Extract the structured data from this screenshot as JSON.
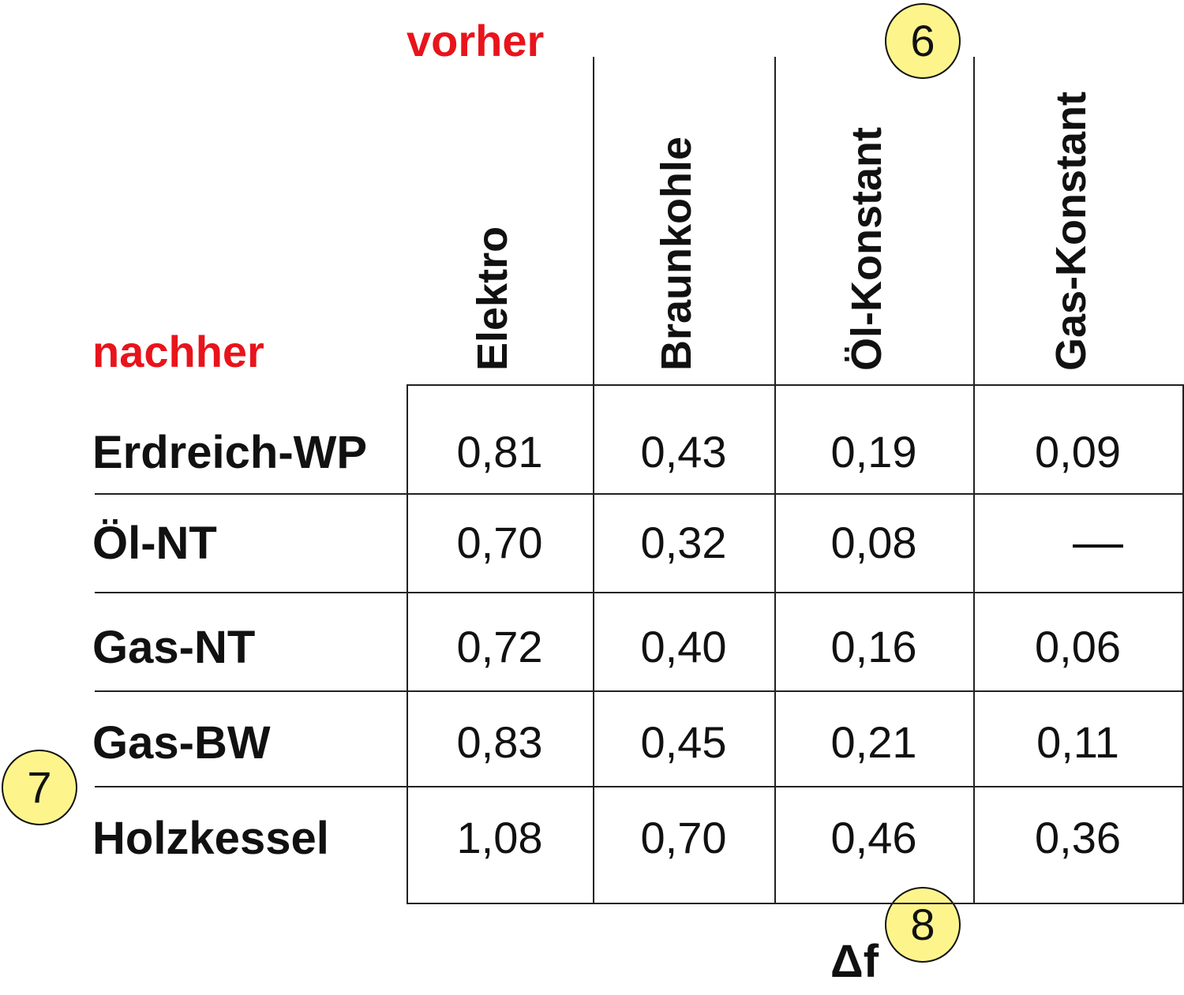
{
  "labels": {
    "before": "vorher",
    "after": "nachher",
    "delta": "Δf"
  },
  "markers": [
    "6",
    "7",
    "8"
  ],
  "chart_data": {
    "type": "table",
    "columns": [
      "Elektro",
      "Braunkohle",
      "Öl-Konstant",
      "Gas-Konstant"
    ],
    "rows": [
      {
        "label": "Erdreich-WP",
        "values": [
          "0,81",
          "0,43",
          "0,19",
          "0,09"
        ]
      },
      {
        "label": "Öl-NT",
        "values": [
          "0,70",
          "0,32",
          "0,08",
          "—"
        ]
      },
      {
        "label": "Gas-NT",
        "values": [
          "0,72",
          "0,40",
          "0,16",
          "0,06"
        ]
      },
      {
        "label": "Gas-BW",
        "values": [
          "0,83",
          "0,45",
          "0,21",
          "0,11"
        ]
      },
      {
        "label": "Holzkessel",
        "values": [
          "1,08",
          "0,70",
          "0,46",
          "0,36"
        ]
      }
    ]
  },
  "colors": {
    "label_red": "#e8141b",
    "marker_fill": "#fdf58c"
  }
}
